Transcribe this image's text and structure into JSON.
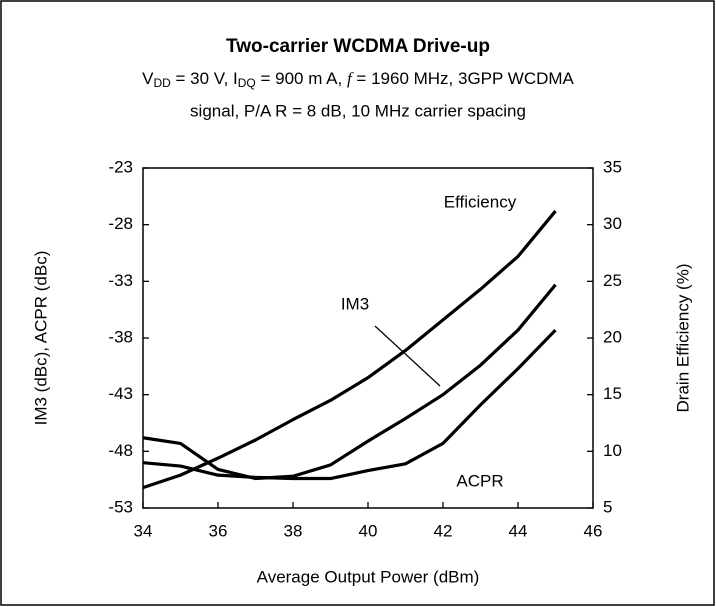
{
  "chart_data": {
    "type": "line",
    "title": "Two-carrier WCDMA Drive-up",
    "subtitle": {
      "line1": [
        "V",
        "DD",
        " = 30 V, I",
        "DQ",
        " = 900 m A, ",
        "f",
        " = 1960 MHz, 3GPP WCDMA"
      ],
      "line2": "signal, P/A R = 8 dB, 10 MHz carrier spacing"
    },
    "xlabel": "Average Output Power (dBm)",
    "ylabel": "IM3 (dBc), ACPR (dBc)",
    "y2label": "Drain Efficiency (%)",
    "x": [
      34,
      35,
      36,
      37,
      38,
      39,
      40,
      41,
      42,
      43,
      44,
      45
    ],
    "series": [
      {
        "name": "Efficiency",
        "color": "#000000",
        "axis": "y2",
        "values": [
          6.8,
          7.9,
          9.4,
          11,
          12.8,
          14.5,
          16.5,
          18.9,
          21.6,
          24.3,
          27.2,
          31.2
        ]
      },
      {
        "name": "IM3",
        "color": "#000000",
        "values": [
          -46.8,
          -47.3,
          -49.6,
          -50.4,
          -50.2,
          -49.2,
          -47.1,
          -45.1,
          -43,
          -40.4,
          -37.3,
          -33.3
        ]
      },
      {
        "name": "ACPR",
        "color": "#000000",
        "values": [
          -49,
          -49.3,
          -50.1,
          -50.3,
          -50.4,
          -50.4,
          -49.7,
          -49.1,
          -47.3,
          -43.9,
          -40.7,
          -37.3
        ]
      }
    ],
    "xlim": [
      34,
      46
    ],
    "xticks": [
      34,
      36,
      38,
      40,
      42,
      44,
      46
    ],
    "ylim": [
      -53,
      -23
    ],
    "yticks": [
      -53,
      -48,
      -43,
      -38,
      -33,
      -28,
      -23
    ],
    "y2lim": [
      5,
      35
    ],
    "y2ticks": [
      5,
      10,
      15,
      20,
      25,
      30,
      35
    ],
    "grid": false
  }
}
